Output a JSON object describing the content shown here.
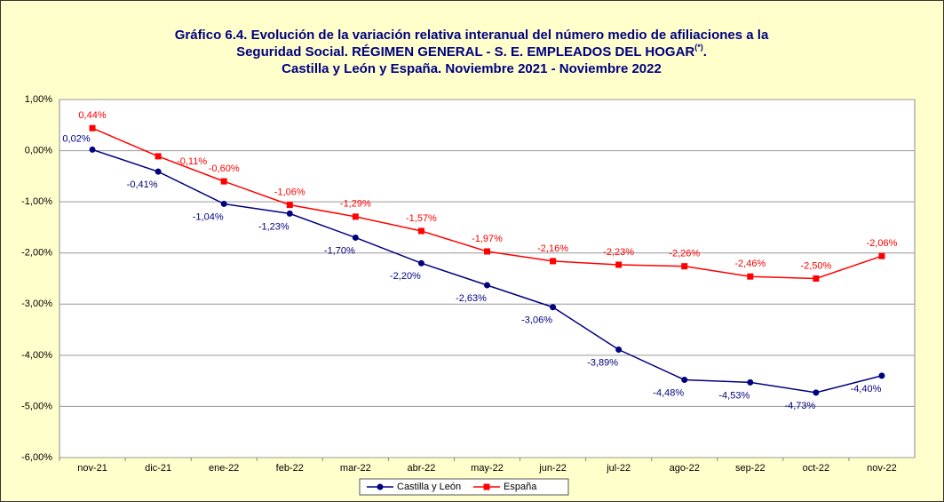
{
  "chart_data": {
    "type": "line",
    "title": {
      "lines": [
        "Gráfico 6.4. Evolución de la variación relativa interanual del número medio de afiliaciones a la",
        "Seguridad Social. RÉGIMEN GENERAL - S. E. EMPLEADOS DEL HOGAR",
        "Castilla y León y España. Noviembre 2021 - Noviembre 2022"
      ],
      "note_mark": "(*)",
      "line2_end": "."
    },
    "categories": [
      "nov-21",
      "dic-21",
      "ene-22",
      "feb-22",
      "mar-22",
      "abr-22",
      "may-22",
      "jun-22",
      "jul-22",
      "ago-22",
      "sep-22",
      "oct-22",
      "nov-22"
    ],
    "series": [
      {
        "name": "Castilla y León",
        "color": "#000080",
        "values": [
          0.02,
          -0.41,
          -1.04,
          -1.23,
          -1.7,
          -2.2,
          -2.63,
          -3.06,
          -3.89,
          -4.48,
          -4.53,
          -4.73,
          -4.4
        ],
        "value_labels": [
          "0,02%",
          "-0,41%",
          "-1,04%",
          "-1,23%",
          "-1,70%",
          "-2,20%",
          "-2,63%",
          "-3,06%",
          "-3,89%",
          "-4,48%",
          "-4,53%",
          "-4,73%",
          "-4,40%"
        ]
      },
      {
        "name": "España",
        "color": "#FF0000",
        "values": [
          0.44,
          -0.11,
          -0.6,
          -1.06,
          -1.29,
          -1.57,
          -1.97,
          -2.16,
          -2.23,
          -2.26,
          -2.46,
          -2.5,
          -2.06
        ],
        "value_labels": [
          "0,44%",
          "-0,11%",
          "-0,60%",
          "-1,06%",
          "-1,29%",
          "-1,57%",
          "-1,97%",
          "-2,16%",
          "-2,23%",
          "-2,26%",
          "-2,46%",
          "-2,50%",
          "-2,06%"
        ]
      }
    ],
    "ylim": [
      -6,
      1
    ],
    "yticks": [
      {
        "value": 1,
        "label": "1,00%"
      },
      {
        "value": 0,
        "label": "0,00%"
      },
      {
        "value": -1,
        "label": "-1,00%"
      },
      {
        "value": -2,
        "label": "-2,00%"
      },
      {
        "value": -3,
        "label": "-3,00%"
      },
      {
        "value": -4,
        "label": "-4,00%"
      },
      {
        "value": -5,
        "label": "-5,00%"
      },
      {
        "value": -6,
        "label": "-6,00%"
      }
    ],
    "grid": true,
    "legend": "bottom"
  }
}
